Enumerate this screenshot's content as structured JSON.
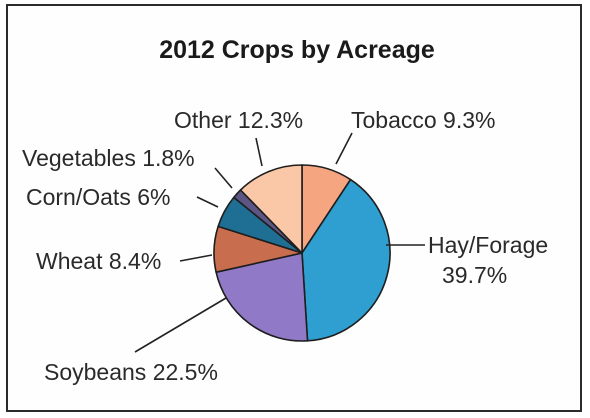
{
  "chart_data": {
    "type": "pie",
    "title": "2012 Crops by Acreage",
    "slices": [
      {
        "name": "Tobacco",
        "value": 9.3,
        "label": "Tobacco 9.3%",
        "color": "#f5a580"
      },
      {
        "name": "Hay/Forage",
        "value": 39.7,
        "label_lines": [
          "Hay/Forage",
          "39.7%"
        ],
        "color": "#2e9fd0"
      },
      {
        "name": "Soybeans",
        "value": 22.5,
        "label": "Soybeans 22.5%",
        "color": "#9079c6"
      },
      {
        "name": "Wheat",
        "value": 8.4,
        "label": "Wheat 8.4%",
        "color": "#c86e4e"
      },
      {
        "name": "Corn/Oats",
        "value": 6,
        "label": "Corn/Oats 6%",
        "color": "#1f6f94"
      },
      {
        "name": "Vegetables",
        "value": 1.8,
        "label": "Vegetables 1.8%",
        "color": "#5d5685"
      },
      {
        "name": "Other",
        "value": 12.3,
        "label": "Other 12.3%",
        "color": "#fbc8a7"
      }
    ],
    "start": "top, clockwise"
  }
}
